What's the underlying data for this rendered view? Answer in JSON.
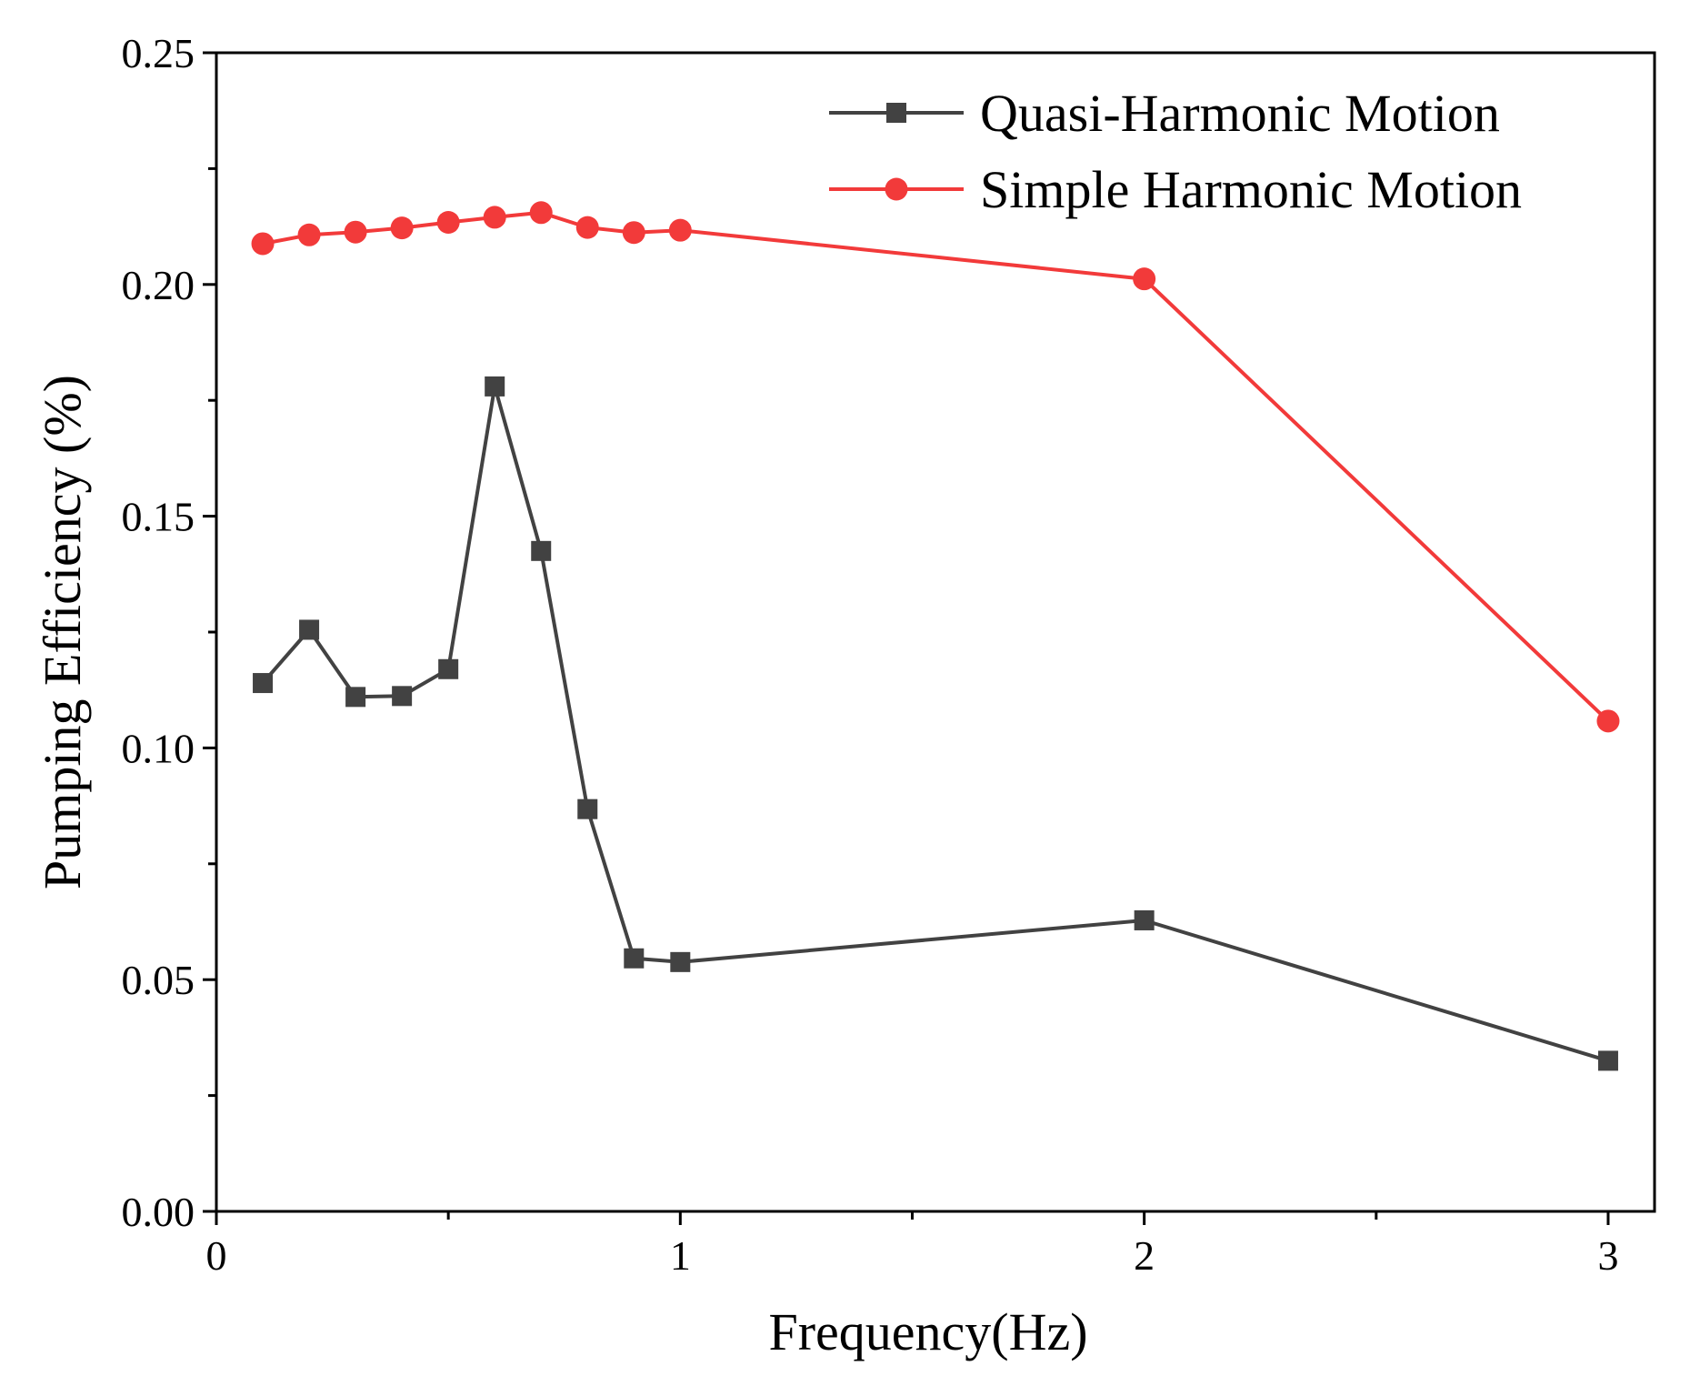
{
  "chart_data": {
    "type": "line",
    "title": "",
    "xlabel": "Frequency(Hz)",
    "ylabel": "Pumping Efficiency (%)",
    "xlim": [
      0,
      3.1
    ],
    "ylim": [
      0,
      0.25
    ],
    "x_ticks": [
      0,
      1,
      2,
      3
    ],
    "x_tick_labels": [
      "0",
      "1",
      "2",
      "3"
    ],
    "x_minor_ticks": [
      0.5,
      1.5,
      2.5
    ],
    "y_ticks": [
      0,
      0.05,
      0.1,
      0.15,
      0.2,
      0.25
    ],
    "y_tick_labels": [
      "0.00",
      "0.05",
      "0.10",
      "0.15",
      "0.20",
      "0.25"
    ],
    "y_minor_ticks": [
      0.025,
      0.075,
      0.125,
      0.175,
      0.225
    ],
    "grid": false,
    "legend_position": "top-right",
    "series": [
      {
        "name": "Quasi-Harmonic Motion",
        "color": "#424242",
        "marker": "square",
        "x": [
          0.1,
          0.2,
          0.3,
          0.4,
          0.5,
          0.6,
          0.7,
          0.8,
          0.9,
          1.0,
          2.0,
          3.0
        ],
        "y": [
          0.114,
          0.1255,
          0.111,
          0.1112,
          0.117,
          0.178,
          0.1425,
          0.0868,
          0.0546,
          0.0538,
          0.0628,
          0.0325
        ]
      },
      {
        "name": "Simple Harmonic Motion",
        "color": "#f23a3a",
        "marker": "circle",
        "x": [
          0.1,
          0.2,
          0.3,
          0.4,
          0.5,
          0.6,
          0.7,
          0.8,
          0.9,
          1.0,
          2.0,
          3.0
        ],
        "y": [
          0.2088,
          0.2107,
          0.2113,
          0.2122,
          0.2134,
          0.2145,
          0.2155,
          0.2123,
          0.2112,
          0.2117,
          0.2012,
          0.1058
        ]
      }
    ]
  }
}
